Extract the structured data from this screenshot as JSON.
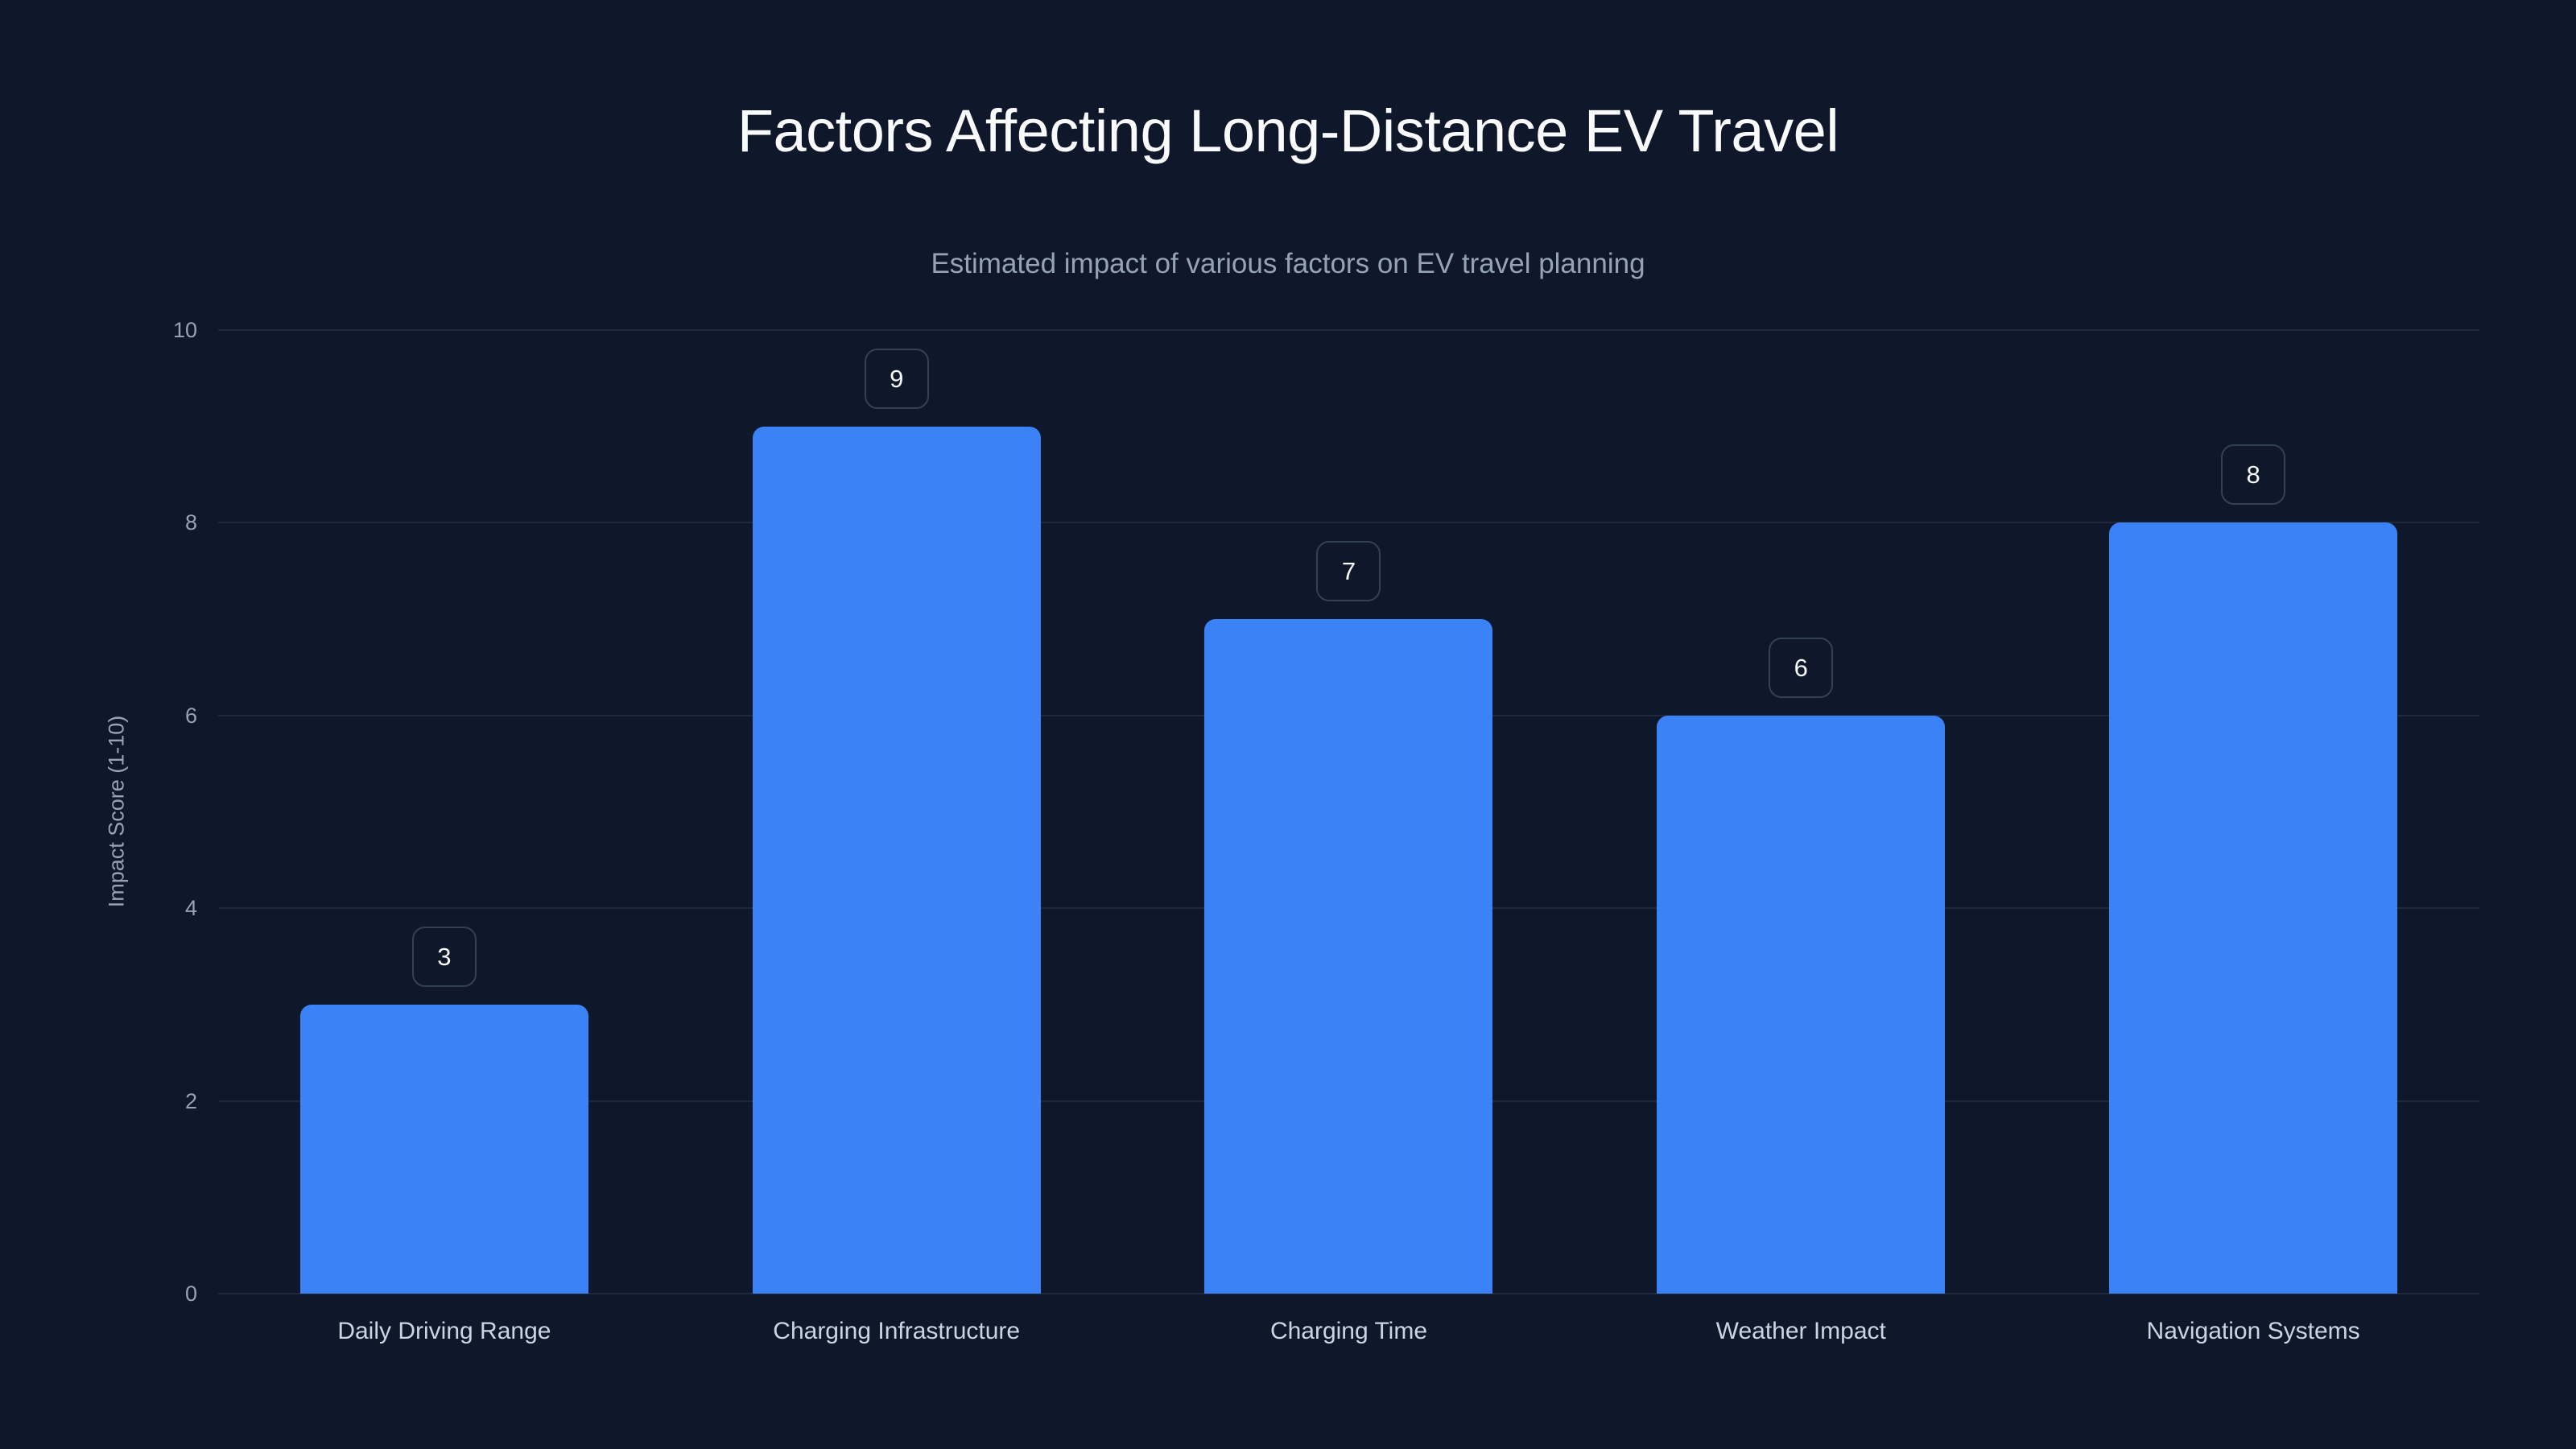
{
  "title": "Factors Affecting Long-Distance EV Travel",
  "subtitle": "Estimated impact of various factors on EV travel planning",
  "colors": {
    "background": "#0f172a",
    "bar": "#3b82f6",
    "grid": "#1e293b",
    "badge_border": "#334155",
    "axis_text": "#94a3b8",
    "category_text": "#cbd5e1",
    "title_text": "#f8fafc"
  },
  "chart_data": {
    "type": "bar",
    "title": "Factors Affecting Long-Distance EV Travel",
    "subtitle": "Estimated impact of various factors on EV travel planning",
    "xlabel": "",
    "ylabel": "Impact Score (1-10)",
    "categories": [
      "Daily Driving Range",
      "Charging Infrastructure",
      "Charging Time",
      "Weather Impact",
      "Navigation Systems"
    ],
    "values": [
      3,
      9,
      7,
      6,
      8
    ],
    "ylim": [
      0,
      10
    ],
    "yticks": [
      0,
      2,
      4,
      6,
      8,
      10
    ],
    "grid": true,
    "legend": null,
    "data_labels": true
  }
}
